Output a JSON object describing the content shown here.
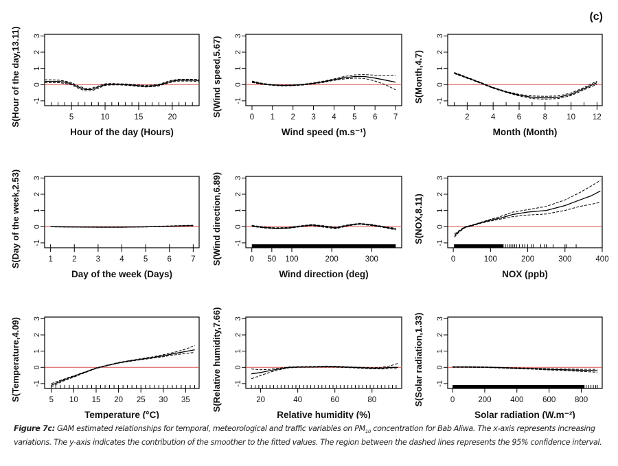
{
  "panel_tag": "(c)",
  "caption": {
    "lead": "Figure 7c:",
    "text_before_sub": " GAM estimated relationships for temporal, meteorological and traffic variables on PM",
    "subscript": "10",
    "text_after_sub": " concentration for Bab Aliwa. The x-axis represents increasing variations. The y-axis indicates the contribution of the smoother to the fitted values. The region between the dashed lines represents the 95% confidence interval."
  },
  "colors": {
    "zero_line": "#d9534f",
    "curve": "#000000",
    "axis": "#000000"
  },
  "chart_data": [
    {
      "type": "line",
      "title": "",
      "xlabel": "Hour of the day (Hours)",
      "ylabel": "S(Hour of the day,13.11)",
      "xlim": [
        1,
        24
      ],
      "ylim": [
        -1.3,
        3.1
      ],
      "xticks": [
        5,
        10,
        15,
        20
      ],
      "yticks": [
        -1,
        0,
        1,
        2,
        3
      ],
      "rug": "ticks-hourly",
      "x": [
        1,
        2,
        3,
        4,
        5,
        6,
        7,
        8,
        9,
        10,
        11,
        12,
        13,
        14,
        15,
        16,
        17,
        18,
        19,
        20,
        21,
        22,
        23,
        24
      ],
      "fit": [
        0.2,
        0.2,
        0.2,
        0.15,
        0.05,
        -0.15,
        -0.3,
        -0.3,
        -0.15,
        0.0,
        0.03,
        0.02,
        0.0,
        -0.03,
        -0.07,
        -0.1,
        -0.08,
        -0.03,
        0.1,
        0.22,
        0.28,
        0.28,
        0.27,
        0.25
      ],
      "upper": [
        0.3,
        0.3,
        0.28,
        0.22,
        0.12,
        -0.08,
        -0.22,
        -0.22,
        -0.08,
        0.05,
        0.07,
        0.05,
        0.04,
        0.01,
        -0.02,
        -0.05,
        -0.03,
        0.02,
        0.15,
        0.28,
        0.33,
        0.33,
        0.33,
        0.32
      ],
      "lower": [
        0.12,
        0.12,
        0.12,
        0.08,
        -0.02,
        -0.22,
        -0.38,
        -0.38,
        -0.22,
        -0.05,
        -0.02,
        -0.02,
        -0.04,
        -0.07,
        -0.12,
        -0.15,
        -0.13,
        -0.08,
        0.05,
        0.16,
        0.22,
        0.22,
        0.21,
        0.18
      ]
    },
    {
      "type": "line",
      "title": "",
      "xlabel": "Wind speed (m.s⁻¹)",
      "ylabel": "S(Wind speed,5.67)",
      "xlim": [
        -0.3,
        7.3
      ],
      "ylim": [
        -1.3,
        3.1
      ],
      "xticks": [
        0,
        1,
        2,
        3,
        4,
        5,
        6,
        7
      ],
      "yticks": [
        -1,
        0,
        1,
        2,
        3
      ],
      "rug": "none",
      "x": [
        0,
        0.5,
        1,
        1.5,
        2,
        2.5,
        3,
        3.5,
        4,
        4.5,
        5,
        5.5,
        6,
        6.5,
        7
      ],
      "fit": [
        0.18,
        0.05,
        -0.02,
        -0.05,
        -0.04,
        0.0,
        0.08,
        0.18,
        0.3,
        0.42,
        0.5,
        0.5,
        0.4,
        0.28,
        0.15
      ],
      "upper": [
        0.22,
        0.08,
        0.0,
        -0.03,
        -0.02,
        0.03,
        0.11,
        0.22,
        0.35,
        0.5,
        0.6,
        0.62,
        0.58,
        0.55,
        0.58
      ],
      "lower": [
        0.13,
        0.02,
        -0.05,
        -0.08,
        -0.07,
        -0.03,
        0.05,
        0.14,
        0.26,
        0.35,
        0.4,
        0.38,
        0.22,
        0.0,
        -0.32
      ]
    },
    {
      "type": "line",
      "title": "",
      "xlabel": "Month (Month)",
      "ylabel": "S(Month,4.7)",
      "xlim": [
        0.5,
        12.4
      ],
      "ylim": [
        -1.3,
        3.1
      ],
      "xticks": [
        2,
        4,
        6,
        8,
        10,
        12
      ],
      "yticks": [
        -1,
        0,
        1,
        2,
        3
      ],
      "rug": "ticks-monthly",
      "x": [
        1,
        2,
        3,
        4,
        5,
        6,
        7,
        8,
        9,
        10,
        11,
        12
      ],
      "fit": [
        0.72,
        0.42,
        0.12,
        -0.2,
        -0.45,
        -0.65,
        -0.78,
        -0.82,
        -0.78,
        -0.6,
        -0.25,
        0.12
      ],
      "upper": [
        0.75,
        0.45,
        0.15,
        -0.17,
        -0.42,
        -0.6,
        -0.7,
        -0.72,
        -0.7,
        -0.52,
        -0.18,
        0.22
      ],
      "lower": [
        0.68,
        0.39,
        0.09,
        -0.23,
        -0.48,
        -0.7,
        -0.86,
        -0.9,
        -0.86,
        -0.68,
        -0.32,
        0.02
      ]
    },
    {
      "type": "line",
      "title": "",
      "xlabel": "Day of the week (Days)",
      "ylabel": "S(Day of the week,2.53)",
      "xlim": [
        0.75,
        7.25
      ],
      "ylim": [
        -1.3,
        3.1
      ],
      "xticks": [
        1,
        2,
        3,
        4,
        5,
        6,
        7
      ],
      "yticks": [
        -1,
        0,
        1,
        2,
        3
      ],
      "rug": "ticks-daily",
      "x": [
        1,
        2,
        3,
        4,
        5,
        6,
        7
      ],
      "fit": [
        0.0,
        -0.02,
        -0.03,
        -0.03,
        -0.01,
        0.03,
        0.07
      ],
      "upper": [
        0.01,
        -0.01,
        -0.02,
        -0.02,
        0.0,
        0.05,
        0.09
      ],
      "lower": [
        -0.01,
        -0.03,
        -0.04,
        -0.04,
        -0.02,
        0.02,
        0.05
      ]
    },
    {
      "type": "line",
      "title": "",
      "xlabel": "Wind direction (deg)",
      "ylabel": "S(Wind direction,6.89)",
      "xlim": [
        -15,
        375
      ],
      "ylim": [
        -1.3,
        3.1
      ],
      "xticks": [
        0,
        50,
        100,
        200,
        300
      ],
      "yticks": [
        -1,
        0,
        1,
        2,
        3
      ],
      "rug": "dense",
      "x": [
        0,
        30,
        60,
        90,
        120,
        150,
        180,
        210,
        240,
        270,
        300,
        330,
        360
      ],
      "fit": [
        0.05,
        -0.05,
        -0.1,
        -0.08,
        0.02,
        0.1,
        0.02,
        -0.08,
        0.08,
        0.18,
        0.1,
        -0.02,
        -0.15
      ],
      "upper": [
        0.08,
        -0.02,
        -0.07,
        -0.05,
        0.05,
        0.13,
        0.06,
        -0.04,
        0.11,
        0.21,
        0.13,
        0.01,
        -0.1
      ],
      "lower": [
        0.02,
        -0.08,
        -0.13,
        -0.11,
        -0.01,
        0.07,
        -0.03,
        -0.13,
        0.05,
        0.15,
        0.07,
        -0.05,
        -0.2
      ]
    },
    {
      "type": "line",
      "title": "",
      "xlabel": "NOX (ppb)",
      "ylabel": "S(NOX,8.11)",
      "xlim": [
        -15,
        400
      ],
      "ylim": [
        -1.3,
        3.1
      ],
      "xticks": [
        0,
        100,
        200,
        300,
        400
      ],
      "yticks": [
        -1,
        0,
        1,
        2,
        3
      ],
      "rug": "nox",
      "x": [
        3,
        15,
        30,
        50,
        75,
        100,
        130,
        160,
        200,
        250,
        300,
        340,
        370,
        395
      ],
      "fit": [
        -0.55,
        -0.3,
        -0.05,
        0.08,
        0.25,
        0.4,
        0.55,
        0.75,
        0.9,
        1.0,
        1.3,
        1.65,
        1.9,
        2.2
      ],
      "upper": [
        -0.45,
        -0.25,
        -0.02,
        0.1,
        0.28,
        0.45,
        0.65,
        0.9,
        1.05,
        1.25,
        1.65,
        2.1,
        2.5,
        2.85
      ],
      "lower": [
        -0.65,
        -0.35,
        -0.08,
        0.05,
        0.22,
        0.35,
        0.48,
        0.62,
        0.72,
        0.78,
        1.0,
        1.25,
        1.38,
        1.5
      ]
    },
    {
      "type": "line",
      "title": "",
      "xlabel": "Temperature (°C)",
      "ylabel": "S(Temperature,4.09)",
      "xlim": [
        3.5,
        38
      ],
      "ylim": [
        -1.3,
        3.1
      ],
      "xticks": [
        5,
        10,
        15,
        20,
        25,
        30,
        35
      ],
      "yticks": [
        -1,
        0,
        1,
        2,
        3
      ],
      "rug": "ticks-temp",
      "x": [
        5,
        7.5,
        10,
        12.5,
        15,
        17.5,
        20,
        22.5,
        25,
        27.5,
        30,
        32.5,
        35,
        37
      ],
      "fit": [
        -1.1,
        -0.8,
        -0.55,
        -0.3,
        -0.05,
        0.12,
        0.28,
        0.4,
        0.5,
        0.6,
        0.72,
        0.85,
        0.98,
        1.08
      ],
      "upper": [
        -1.0,
        -0.75,
        -0.52,
        -0.28,
        -0.03,
        0.14,
        0.3,
        0.42,
        0.53,
        0.64,
        0.78,
        0.93,
        1.12,
        1.35
      ],
      "lower": [
        -1.2,
        -0.86,
        -0.6,
        -0.33,
        -0.07,
        0.1,
        0.26,
        0.37,
        0.47,
        0.56,
        0.66,
        0.77,
        0.86,
        0.92
      ]
    },
    {
      "type": "line",
      "title": "",
      "xlabel": "Relative humidity (%)",
      "ylabel": "S(Relative humidity,7.66)",
      "xlim": [
        12,
        96
      ],
      "ylim": [
        -1.3,
        3.1
      ],
      "xticks": [
        20,
        40,
        60,
        80
      ],
      "yticks": [
        -1,
        0,
        1,
        2,
        3
      ],
      "rug": "ticks-rh",
      "x": [
        15,
        20,
        25,
        30,
        35,
        40,
        50,
        55,
        60,
        70,
        80,
        85,
        90,
        94
      ],
      "fit": [
        -0.4,
        -0.32,
        -0.2,
        -0.1,
        0.0,
        0.02,
        0.03,
        0.05,
        0.04,
        0.0,
        -0.05,
        -0.05,
        0.0,
        0.0
      ],
      "upper": [
        -0.1,
        -0.15,
        -0.12,
        -0.05,
        0.02,
        0.04,
        0.06,
        0.08,
        0.07,
        0.02,
        -0.02,
        0.0,
        0.1,
        0.25
      ],
      "lower": [
        -0.7,
        -0.5,
        -0.3,
        -0.15,
        -0.03,
        0.0,
        0.01,
        0.02,
        0.01,
        -0.03,
        -0.09,
        -0.1,
        -0.08,
        -0.1
      ]
    },
    {
      "type": "line",
      "title": "",
      "xlabel": "Solar radiation (W.m⁻²)",
      "ylabel": "S(Solar radiation,1.33)",
      "xlim": [
        -30,
        930
      ],
      "ylim": [
        -1.3,
        3.1
      ],
      "xticks": [
        0,
        200,
        400,
        600,
        800
      ],
      "yticks": [
        -1,
        0,
        1,
        2,
        3
      ],
      "rug": "dense-solar",
      "x": [
        0,
        100,
        200,
        300,
        400,
        500,
        600,
        700,
        800,
        900
      ],
      "fit": [
        0.02,
        0.02,
        0.01,
        -0.02,
        -0.05,
        -0.08,
        -0.12,
        -0.15,
        -0.18,
        -0.2
      ],
      "upper": [
        0.04,
        0.04,
        0.03,
        0.0,
        -0.03,
        -0.05,
        -0.08,
        -0.1,
        -0.12,
        -0.12
      ],
      "lower": [
        0.0,
        0.0,
        -0.01,
        -0.04,
        -0.08,
        -0.11,
        -0.16,
        -0.2,
        -0.25,
        -0.3
      ]
    }
  ]
}
